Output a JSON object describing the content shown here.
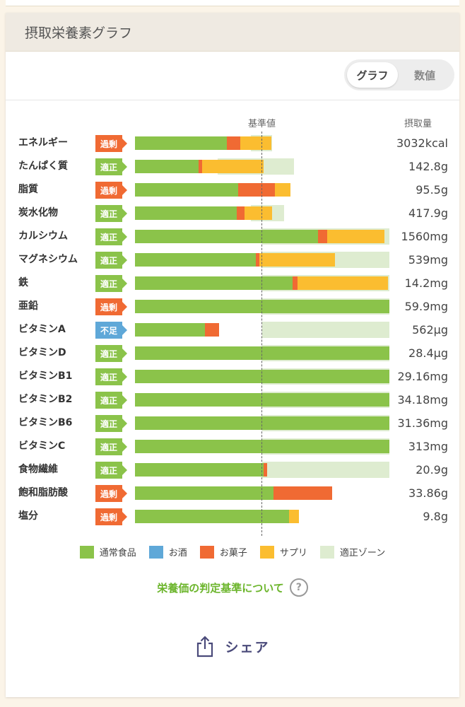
{
  "card": {
    "title": "摂取栄養素グラフ"
  },
  "toggle": {
    "graph_label": "グラフ",
    "values_label": "数値"
  },
  "chart_header": {
    "reference_label": "基準値",
    "amount_label": "摂取量"
  },
  "colors": {
    "normal_food": "#8bc34a",
    "alcohol": "#5fa8d8",
    "snacks": "#f06a33",
    "supplements": "#fbbd30",
    "zone": "#deecd0",
    "badge_over": "#f06a33",
    "badge_ok": "#8bc34a",
    "badge_low": "#5fa8d8"
  },
  "chart_data": {
    "type": "bar",
    "orientation": "horizontal",
    "stacked": true,
    "unit": "percent of reference value (reference = 100)",
    "xlim": [
      0,
      200
    ],
    "categories": [
      "エネルギー",
      "たんぱく質",
      "脂質",
      "炭水化物",
      "カルシウム",
      "マグネシウム",
      "鉄",
      "亜鉛",
      "ビタミンA",
      "ビタミンD",
      "ビタミンB1",
      "ビタミンB2",
      "ビタミンB6",
      "ビタミンC",
      "食物繊維",
      "飽和脂肪酸",
      "塩分"
    ],
    "series": [
      {
        "name": "通常食品",
        "values": [
          72,
          50,
          81,
          80,
          144,
          95,
          124,
          200,
          55,
          200,
          200,
          200,
          200,
          200,
          101,
          109,
          121
        ]
      },
      {
        "name": "お酒",
        "values": [
          0,
          0,
          0,
          0,
          0,
          0,
          0,
          0,
          0,
          0,
          0,
          0,
          0,
          0,
          0,
          0,
          0
        ]
      },
      {
        "name": "お菓子",
        "values": [
          11,
          3,
          29,
          6,
          7,
          3,
          4,
          0,
          11,
          0,
          0,
          0,
          0,
          0,
          3,
          46,
          0
        ]
      },
      {
        "name": "サプリ",
        "values": [
          24,
          48,
          12,
          22,
          45,
          59,
          71,
          0,
          0,
          0,
          0,
          0,
          0,
          0,
          0,
          0,
          8
        ]
      }
    ],
    "zone_ranges": [
      [
        91,
        108
      ],
      [
        65,
        125
      ],
      [
        null,
        null
      ],
      [
        91,
        117
      ],
      [
        100,
        200
      ],
      [
        100,
        200
      ],
      [
        100,
        200
      ],
      [
        100,
        200
      ],
      [
        100,
        200
      ],
      [
        100,
        200
      ],
      [
        100,
        200
      ],
      [
        100,
        200
      ],
      [
        100,
        200
      ],
      [
        100,
        200
      ],
      [
        100,
        200
      ],
      [
        null,
        null
      ],
      [
        null,
        null
      ]
    ],
    "reference_value": 100,
    "legend": [
      "通常食品",
      "お酒",
      "お菓子",
      "サプリ",
      "適正ゾーン"
    ]
  },
  "rows": [
    {
      "label": "エネルギー",
      "status": "過剰",
      "status_type": "over",
      "amount": "3032kcal"
    },
    {
      "label": "たんぱく質",
      "status": "適正",
      "status_type": "ok",
      "amount": "142.8g"
    },
    {
      "label": "脂質",
      "status": "過剰",
      "status_type": "over",
      "amount": "95.5g"
    },
    {
      "label": "炭水化物",
      "status": "適正",
      "status_type": "ok",
      "amount": "417.9g"
    },
    {
      "label": "カルシウム",
      "status": "適正",
      "status_type": "ok",
      "amount": "1560mg"
    },
    {
      "label": "マグネシウム",
      "status": "適正",
      "status_type": "ok",
      "amount": "539mg"
    },
    {
      "label": "鉄",
      "status": "適正",
      "status_type": "ok",
      "amount": "14.2mg"
    },
    {
      "label": "亜鉛",
      "status": "過剰",
      "status_type": "over",
      "amount": "59.9mg"
    },
    {
      "label": "ビタミンA",
      "status": "不足",
      "status_type": "low",
      "amount": "562μg"
    },
    {
      "label": "ビタミンD",
      "status": "適正",
      "status_type": "ok",
      "amount": "28.4μg"
    },
    {
      "label": "ビタミンB1",
      "status": "適正",
      "status_type": "ok",
      "amount": "29.16mg"
    },
    {
      "label": "ビタミンB2",
      "status": "適正",
      "status_type": "ok",
      "amount": "34.18mg"
    },
    {
      "label": "ビタミンB6",
      "status": "適正",
      "status_type": "ok",
      "amount": "31.36mg"
    },
    {
      "label": "ビタミンC",
      "status": "適正",
      "status_type": "ok",
      "amount": "313mg"
    },
    {
      "label": "食物繊維",
      "status": "適正",
      "status_type": "ok",
      "amount": "20.9g"
    },
    {
      "label": "飽和脂肪酸",
      "status": "過剰",
      "status_type": "over",
      "amount": "33.86g"
    },
    {
      "label": "塩分",
      "status": "過剰",
      "status_type": "over",
      "amount": "9.8g"
    }
  ],
  "legend": {
    "normal_food": "通常食品",
    "alcohol": "お酒",
    "snacks": "お菓子",
    "supplements": "サプリ",
    "zone": "適正ゾーン"
  },
  "criteria_link": "栄養価の判定基準について",
  "share_label": "シェア"
}
